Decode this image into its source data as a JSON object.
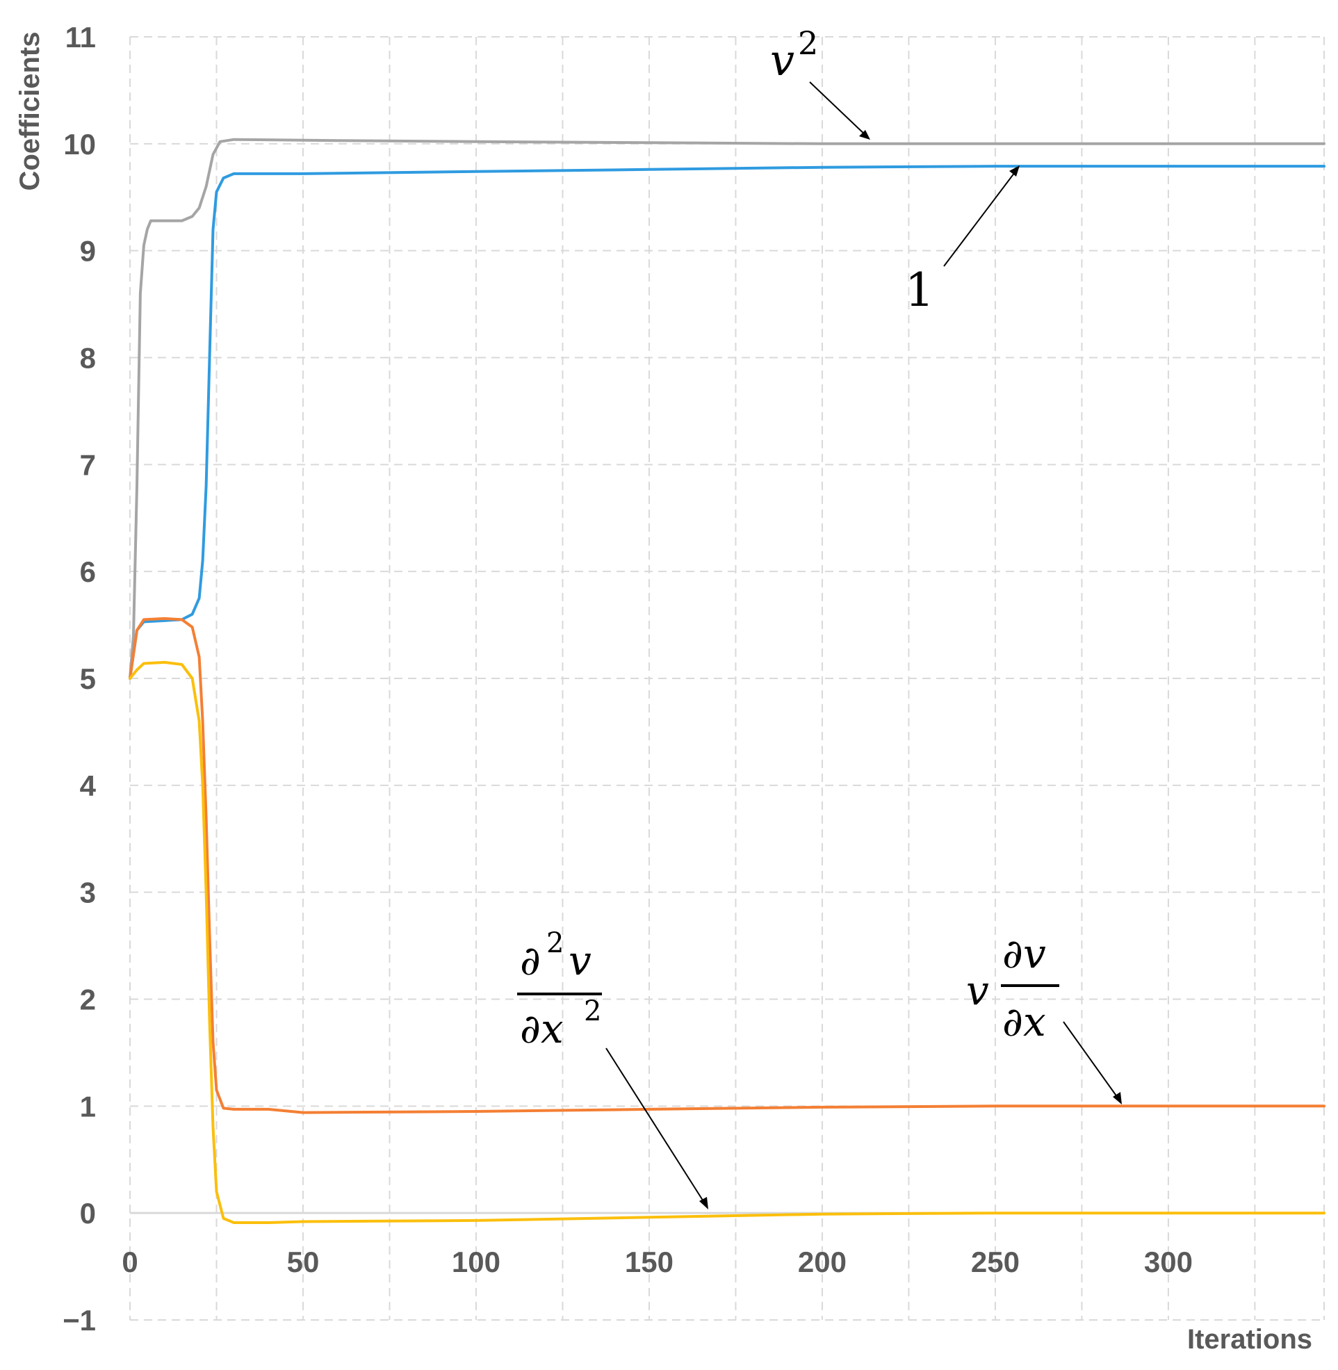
{
  "chart_data": {
    "type": "line",
    "xlabel": "Iterations",
    "ylabel": "Coefficients",
    "xlim": [
      0,
      345
    ],
    "ylim": [
      -1,
      11
    ],
    "x_ticks": [
      0,
      50,
      100,
      150,
      200,
      250,
      300
    ],
    "y_ticks": [
      -1,
      0,
      1,
      2,
      3,
      4,
      5,
      6,
      7,
      8,
      9,
      10,
      11
    ],
    "x_tick_labels": [
      "0",
      "50",
      "100",
      "150",
      "200",
      "250",
      "300"
    ],
    "y_tick_labels": [
      "−1",
      "0",
      "1",
      "2",
      "3",
      "4",
      "5",
      "6",
      "7",
      "8",
      "9",
      "10",
      "11"
    ],
    "grid": true,
    "series": [
      {
        "name": "v^2",
        "color": "#a5a5a5",
        "points": [
          [
            0,
            5.0
          ],
          [
            1,
            5.4
          ],
          [
            2,
            6.8
          ],
          [
            3,
            8.6
          ],
          [
            4,
            9.05
          ],
          [
            5,
            9.2
          ],
          [
            6,
            9.28
          ],
          [
            10,
            9.28
          ],
          [
            15,
            9.28
          ],
          [
            18,
            9.32
          ],
          [
            20,
            9.4
          ],
          [
            22,
            9.6
          ],
          [
            24,
            9.9
          ],
          [
            26,
            10.02
          ],
          [
            30,
            10.04
          ],
          [
            60,
            10.03
          ],
          [
            100,
            10.02
          ],
          [
            150,
            10.01
          ],
          [
            200,
            10.0
          ],
          [
            250,
            10.0
          ],
          [
            300,
            10.0
          ],
          [
            345,
            10.0
          ]
        ]
      },
      {
        "name": "1",
        "color": "#2f9be0",
        "points": [
          [
            0,
            5.0
          ],
          [
            2,
            5.45
          ],
          [
            4,
            5.53
          ],
          [
            10,
            5.54
          ],
          [
            15,
            5.55
          ],
          [
            18,
            5.6
          ],
          [
            20,
            5.75
          ],
          [
            21,
            6.1
          ],
          [
            22,
            6.8
          ],
          [
            23,
            8.0
          ],
          [
            24,
            9.2
          ],
          [
            25,
            9.55
          ],
          [
            27,
            9.68
          ],
          [
            30,
            9.72
          ],
          [
            50,
            9.72
          ],
          [
            100,
            9.74
          ],
          [
            150,
            9.76
          ],
          [
            200,
            9.78
          ],
          [
            250,
            9.79
          ],
          [
            300,
            9.79
          ],
          [
            345,
            9.79
          ]
        ]
      },
      {
        "name": "v ∂v/∂x",
        "color": "#f47f34",
        "points": [
          [
            0,
            5.0
          ],
          [
            2,
            5.45
          ],
          [
            4,
            5.55
          ],
          [
            10,
            5.56
          ],
          [
            15,
            5.55
          ],
          [
            18,
            5.48
          ],
          [
            20,
            5.2
          ],
          [
            21,
            4.6
          ],
          [
            22,
            3.7
          ],
          [
            23,
            2.6
          ],
          [
            24,
            1.6
          ],
          [
            25,
            1.15
          ],
          [
            27,
            0.98
          ],
          [
            30,
            0.97
          ],
          [
            40,
            0.97
          ],
          [
            50,
            0.94
          ],
          [
            100,
            0.95
          ],
          [
            150,
            0.97
          ],
          [
            200,
            0.99
          ],
          [
            250,
            1.0
          ],
          [
            300,
            1.0
          ],
          [
            345,
            1.0
          ]
        ]
      },
      {
        "name": "∂²v/∂x²",
        "color": "#fbbf0c",
        "points": [
          [
            0,
            5.0
          ],
          [
            2,
            5.08
          ],
          [
            4,
            5.14
          ],
          [
            10,
            5.15
          ],
          [
            15,
            5.13
          ],
          [
            18,
            5.0
          ],
          [
            20,
            4.6
          ],
          [
            21,
            4.0
          ],
          [
            22,
            3.0
          ],
          [
            23,
            1.8
          ],
          [
            24,
            0.8
          ],
          [
            25,
            0.2
          ],
          [
            27,
            -0.05
          ],
          [
            30,
            -0.09
          ],
          [
            40,
            -0.09
          ],
          [
            50,
            -0.08
          ],
          [
            100,
            -0.07
          ],
          [
            150,
            -0.04
          ],
          [
            200,
            -0.01
          ],
          [
            250,
            0.0
          ],
          [
            300,
            0.0
          ],
          [
            345,
            0.0
          ]
        ]
      }
    ],
    "annotations": {
      "v_squared": {
        "base": "v",
        "exp": "2"
      },
      "one": "1",
      "v_dvdx": {
        "coef": "v",
        "num": "∂v",
        "den": "∂x"
      },
      "d2v_dx2": {
        "num_d": "∂",
        "num_exp": "2",
        "num_v": "v",
        "den_dx": "∂x",
        "den_exp": "2"
      }
    }
  }
}
